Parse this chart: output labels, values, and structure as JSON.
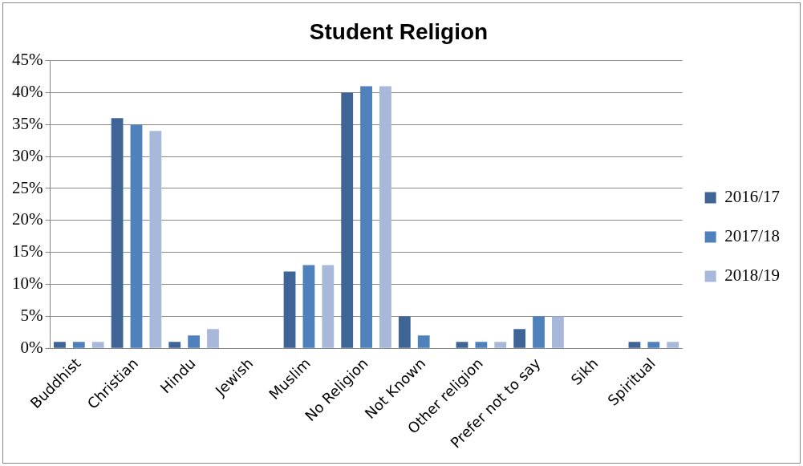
{
  "chart_data": {
    "type": "bar",
    "title": "Student Religion",
    "categories": [
      "Buddhist",
      "Christian",
      "Hindu",
      "Jewish",
      "Muslim",
      "No Religion",
      "Not Known",
      "Other religion",
      "Prefer not to say",
      "Sikh",
      "Spiritual"
    ],
    "series": [
      {
        "name": "2016/17",
        "color": "#3f6496",
        "values": [
          1,
          36,
          1,
          0,
          12,
          40,
          5,
          1,
          3,
          0,
          1
        ]
      },
      {
        "name": "2017/18",
        "color": "#4f81bd",
        "values": [
          1,
          35,
          2,
          0,
          13,
          41,
          2,
          1,
          5,
          0,
          1
        ]
      },
      {
        "name": "2018/19",
        "color": "#a8b8da",
        "values": [
          1,
          34,
          3,
          0,
          13,
          41,
          0,
          1,
          5,
          0,
          1
        ]
      }
    ],
    "ylim": [
      0,
      45
    ],
    "yticks": [
      {
        "value": 0,
        "label": "0%"
      },
      {
        "value": 5,
        "label": "5%"
      },
      {
        "value": 10,
        "label": "10%"
      },
      {
        "value": 15,
        "label": "15%"
      },
      {
        "value": 20,
        "label": "20%"
      },
      {
        "value": 25,
        "label": "25%"
      },
      {
        "value": 30,
        "label": "30%"
      },
      {
        "value": 35,
        "label": "35%"
      },
      {
        "value": 40,
        "label": "40%"
      },
      {
        "value": 45,
        "label": "45%"
      }
    ],
    "grid": "y",
    "legend": "right"
  }
}
